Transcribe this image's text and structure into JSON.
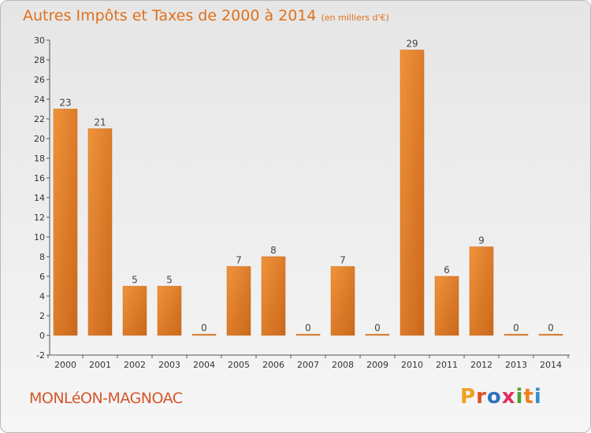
{
  "chart_data": {
    "type": "bar",
    "title": "Autres Impôts et Taxes de 2000 à 2014",
    "subtitle": "(en milliers d'€)",
    "categories": [
      "2000",
      "2001",
      "2002",
      "2003",
      "2004",
      "2005",
      "2006",
      "2007",
      "2008",
      "2009",
      "2010",
      "2011",
      "2012",
      "2013",
      "2014"
    ],
    "values": [
      23,
      21,
      5,
      5,
      0,
      7,
      8,
      0,
      7,
      0,
      29,
      6,
      9,
      0,
      0
    ],
    "ylim": [
      -2,
      30
    ],
    "yticks": [
      -2,
      0,
      2,
      4,
      6,
      8,
      10,
      12,
      14,
      16,
      18,
      20,
      22,
      24,
      26,
      28,
      30
    ],
    "grid": false,
    "bar_color": "#f0923a",
    "bar_color_dark": "#c9681b"
  },
  "footer": {
    "commune": "MONLéON-MAGNOAC",
    "brand": "Proxiti"
  },
  "colors": {
    "title": "#e0701c",
    "commune": "#d2572a",
    "brand_letters": [
      "#f0a020",
      "#e05020",
      "#3070c0",
      "#e03060",
      "#50a030",
      "#f08020",
      "#3090d0"
    ]
  }
}
